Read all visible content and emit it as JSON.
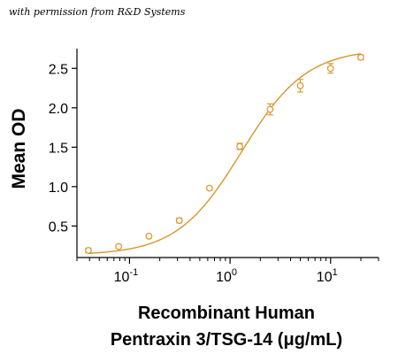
{
  "credit": "with permission from R&D Systems",
  "chart_data": {
    "type": "scatter",
    "title": "",
    "ylabel": "Mean OD",
    "xlabel_line1": "Recombinant Human",
    "xlabel_line2": "Pentraxin 3/TSG-14 (μg/mL)",
    "x_scale": "log",
    "xlim": [
      0.03,
      30
    ],
    "ylim": [
      0.1,
      2.75
    ],
    "x_ticks": [
      {
        "value": 0.1,
        "base": "10",
        "exp": "-1"
      },
      {
        "value": 1,
        "base": "10",
        "exp": "0"
      },
      {
        "value": 10,
        "base": "10",
        "exp": "1"
      }
    ],
    "y_ticks": [
      {
        "value": 0.5,
        "label": "0.5"
      },
      {
        "value": 1.0,
        "label": "1.0"
      },
      {
        "value": 1.5,
        "label": "1.5"
      },
      {
        "value": 2.0,
        "label": "2.0"
      },
      {
        "value": 2.5,
        "label": "2.5"
      }
    ],
    "series": [
      {
        "color": "#D9952A",
        "points": [
          {
            "x": 0.039,
            "y": 0.19,
            "err": 0.03
          },
          {
            "x": 0.078,
            "y": 0.24,
            "err": 0.02
          },
          {
            "x": 0.156,
            "y": 0.37,
            "err": 0.02
          },
          {
            "x": 0.3125,
            "y": 0.57,
            "err": 0.03
          },
          {
            "x": 0.625,
            "y": 0.98,
            "err": 0.02
          },
          {
            "x": 1.25,
            "y": 1.51,
            "err": 0.04
          },
          {
            "x": 2.5,
            "y": 1.98,
            "err": 0.07
          },
          {
            "x": 5,
            "y": 2.28,
            "err": 0.08
          },
          {
            "x": 10,
            "y": 2.5,
            "err": 0.06
          },
          {
            "x": 20,
            "y": 2.64,
            "err": 0.03
          }
        ],
        "fit": {
          "bottom": 0.13,
          "top": 2.75,
          "ec50": 1.3,
          "hill": 1.35
        }
      }
    ],
    "grid": false,
    "legend": "none"
  }
}
